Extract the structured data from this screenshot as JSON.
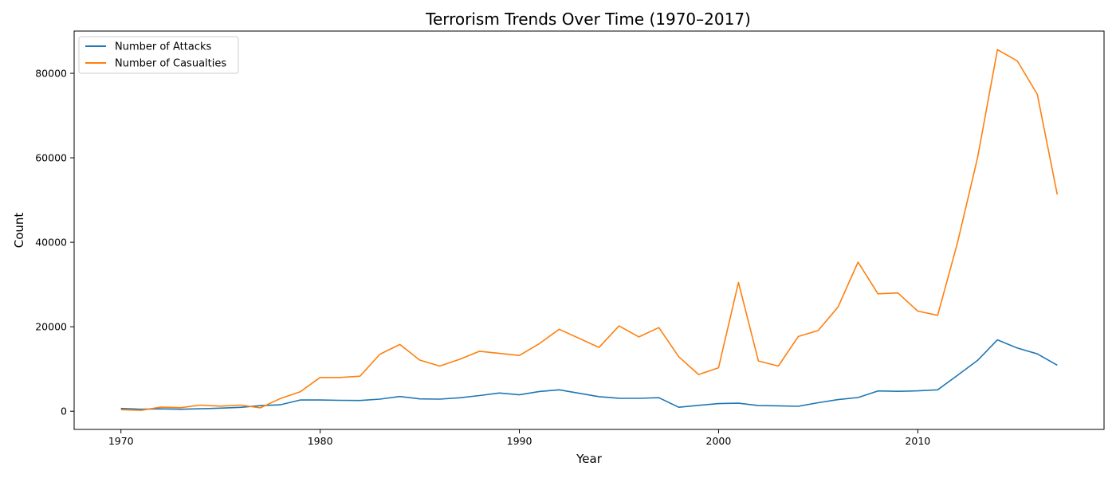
{
  "chart_data": {
    "type": "line",
    "title": "Terrorism Trends Over Time (1970–2017)",
    "xlabel": "Year",
    "ylabel": "Count",
    "xlim": [
      1967.65,
      2019.35
    ],
    "ylim": [
      -4300,
      90000
    ],
    "x_ticks": [
      1970,
      1980,
      1990,
      2000,
      2010
    ],
    "y_ticks": [
      0,
      20000,
      40000,
      60000,
      80000
    ],
    "grid": false,
    "legend_position": "top-left",
    "x": [
      1970,
      1971,
      1972,
      1973,
      1974,
      1975,
      1976,
      1977,
      1978,
      1979,
      1980,
      1981,
      1982,
      1983,
      1984,
      1985,
      1986,
      1987,
      1988,
      1989,
      1990,
      1991,
      1992,
      1994,
      1995,
      1996,
      1997,
      1998,
      1999,
      2000,
      2001,
      2002,
      2003,
      2004,
      2005,
      2006,
      2007,
      2008,
      2009,
      2010,
      2011,
      2012,
      2013,
      2014,
      2015,
      2016,
      2017
    ],
    "series": [
      {
        "name": "Number of Attacks",
        "color": "#1f77b4",
        "values": [
          651,
          471,
          568,
          473,
          581,
          740,
          923,
          1319,
          1526,
          2662,
          2662,
          2586,
          2544,
          2870,
          3495,
          2915,
          2860,
          3183,
          3721,
          4324,
          3887,
          4683,
          5071,
          3456,
          3081,
          3058,
          3197,
          934,
          1395,
          1814,
          1906,
          1333,
          1278,
          1166,
          2017,
          2758,
          3242,
          4805,
          4721,
          4826,
          5076,
          8522,
          12036,
          16903,
          14965,
          13587,
          10900
        ]
      },
      {
        "name": "Number of Casualties",
        "color": "#ff7f0e",
        "values": [
          386,
          204,
          966,
          852,
          1450,
          1200,
          1456,
          807,
          3000,
          4600,
          8000,
          8000,
          8300,
          13500,
          15800,
          12100,
          10700,
          12300,
          14200,
          13700,
          13200,
          16000,
          19400,
          15100,
          20200,
          17600,
          19800,
          12900,
          8700,
          10300,
          30500,
          11900,
          10700,
          17700,
          19100,
          24700,
          35300,
          27800,
          28000,
          23700,
          22700,
          40000,
          60000,
          85600,
          82900,
          75000,
          51300
        ]
      }
    ]
  }
}
